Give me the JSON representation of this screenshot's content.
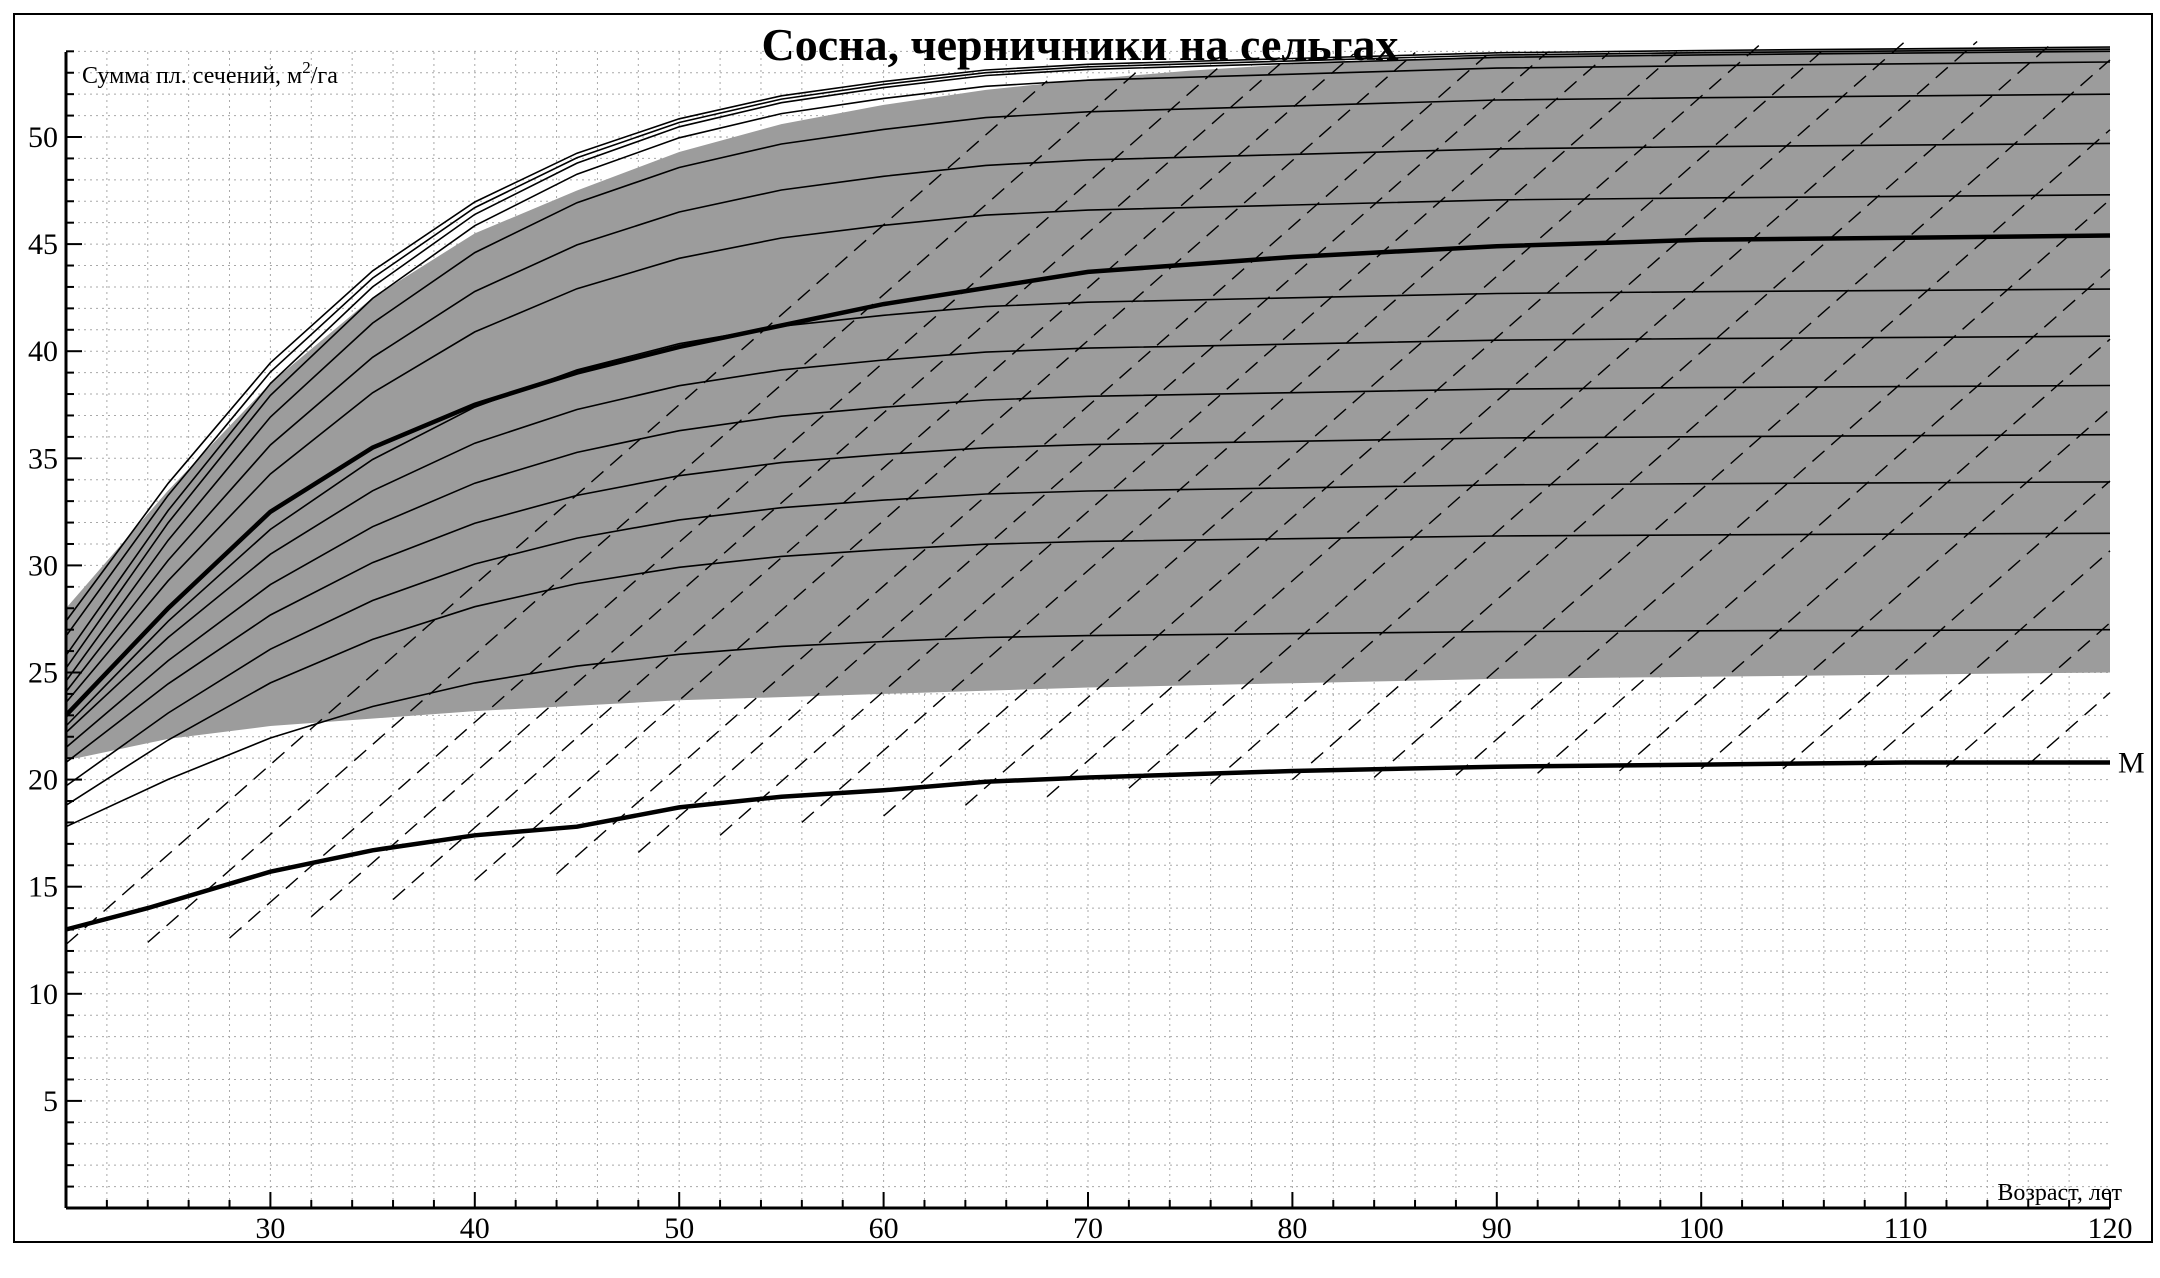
{
  "chart_data": {
    "type": "line",
    "title": "Сосна, черничники на сельгах",
    "ylabel": "Сумма пл. сечений, м",
    "ylabel_sup": "2",
    "ylabel_tail": "/га",
    "xlabel": "Возраст, лет",
    "xlim": [
      20,
      120
    ],
    "ylim": [
      0,
      54
    ],
    "x_ticks": [
      30,
      40,
      50,
      60,
      70,
      80,
      90,
      100,
      110,
      120
    ],
    "y_ticks": [
      5,
      10,
      15,
      20,
      25,
      30,
      35,
      40,
      45,
      50
    ],
    "grid": "dotted minor grid, step 2 years / 1 m²/ha",
    "shaded_band_color": "#9c9c9c",
    "upper_envelope": {
      "x": [
        20,
        25,
        30,
        35,
        40,
        45,
        50,
        55,
        60,
        65,
        70,
        75,
        80,
        90,
        100,
        110,
        120
      ],
      "y": [
        28,
        33.5,
        38.5,
        42.5,
        45.5,
        47.5,
        49.3,
        50.6,
        51.5,
        52.2,
        52.7,
        53.1,
        53.4,
        53.8,
        54,
        54.1,
        54.2
      ]
    },
    "lower_band_edge": {
      "x": [
        20,
        20.5,
        25,
        30,
        40,
        50,
        60,
        70,
        80,
        90,
        100,
        110,
        120
      ],
      "y": [
        21,
        21,
        21.9,
        22.5,
        23.2,
        23.7,
        24,
        24.3,
        24.5,
        24.7,
        24.8,
        24.9,
        25
      ]
    },
    "series": [
      {
        "name": "M",
        "style": "bold",
        "x": [
          20,
          24,
          30,
          35,
          40,
          45,
          50,
          55,
          60,
          65,
          70,
          80,
          90,
          100,
          110,
          120
        ],
        "y": [
          13,
          14,
          15.7,
          16.7,
          17.4,
          17.8,
          18.7,
          19.2,
          19.5,
          19.9,
          20.1,
          20.4,
          20.6,
          20.7,
          20.8,
          20.8
        ]
      },
      {
        "name": "",
        "style": "bold",
        "x": [
          20,
          25,
          30,
          35,
          40,
          45,
          50,
          55,
          60,
          70,
          80,
          90,
          100,
          110,
          120
        ],
        "y": [
          23,
          28,
          32.5,
          35.5,
          37.5,
          39,
          40.2,
          41.2,
          42.2,
          43.7,
          44.4,
          44.9,
          45.2,
          45.3,
          45.4
        ]
      }
    ],
    "thin_curves": {
      "x": [
        20,
        25,
        30,
        35,
        40,
        45,
        50,
        55,
        60,
        65,
        70,
        80,
        90,
        100,
        110,
        120
      ],
      "shape_index": [
        0,
        0.24,
        0.45,
        0.61,
        0.73,
        0.815,
        0.875,
        0.915,
        0.94,
        0.96,
        0.97,
        0.98,
        0.99,
        0.994,
        0.997,
        1
      ],
      "start_values": [
        17.8,
        18.8,
        19.7,
        20.8,
        21.5,
        22.2,
        22.5,
        23.6,
        24.1,
        24.6,
        25.2,
        25.8,
        26.7,
        27.4
      ],
      "end_values": [
        27,
        31.5,
        33.9,
        36.1,
        38.4,
        40.7,
        42.9,
        47.3,
        49.7,
        52,
        53.5,
        54,
        54.1,
        54.2
      ]
    },
    "dashed_lines": {
      "slope_per_year": 0.84,
      "start_points": [
        [
          20,
          12.3
        ],
        [
          24,
          12.4
        ],
        [
          28,
          12.6
        ],
        [
          32,
          13.6
        ],
        [
          36,
          14.4
        ],
        [
          40,
          15.3
        ],
        [
          44,
          15.6
        ],
        [
          48,
          16.6
        ],
        [
          52,
          17.4
        ],
        [
          56,
          18
        ],
        [
          60,
          18.3
        ],
        [
          64,
          18.8
        ],
        [
          68,
          19.2
        ],
        [
          72,
          19.6
        ],
        [
          76,
          19.8
        ],
        [
          80,
          20
        ],
        [
          84,
          20.1
        ],
        [
          88,
          20.2
        ],
        [
          92,
          20.3
        ],
        [
          96,
          20.4
        ],
        [
          100,
          20.5
        ],
        [
          104,
          20.5
        ],
        [
          108,
          20.6
        ],
        [
          112,
          20.6
        ],
        [
          116,
          20.7
        ]
      ]
    }
  }
}
